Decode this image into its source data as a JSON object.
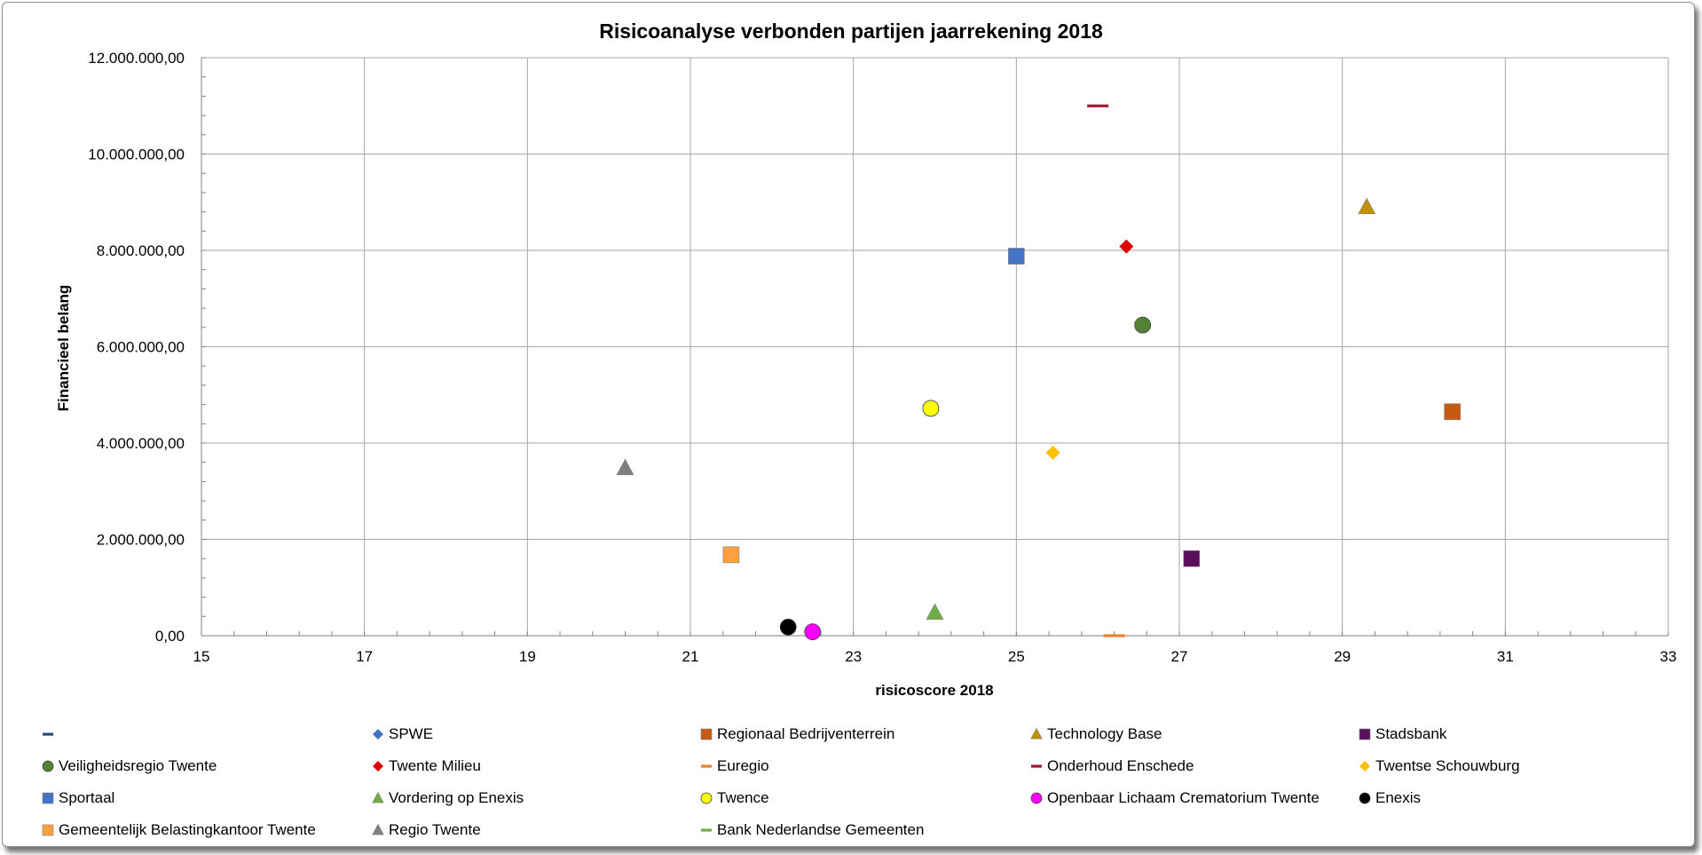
{
  "chart_data": {
    "type": "scatter",
    "title": "Risicoanalyse verbonden partijen jaarrekening 2018",
    "xlabel": "risicoscore 2018",
    "ylabel": "Financieel belang",
    "xlim": [
      15,
      33
    ],
    "ylim": [
      0,
      12000000
    ],
    "x_ticks": [
      15,
      17,
      19,
      21,
      23,
      25,
      27,
      29,
      31,
      33
    ],
    "x_tick_labels": [
      "15",
      "17",
      "19",
      "21",
      "23",
      "25",
      "27",
      "29",
      "31",
      "33"
    ],
    "y_ticks": [
      0,
      2000000,
      4000000,
      6000000,
      8000000,
      10000000,
      12000000
    ],
    "y_tick_labels": [
      "0,00",
      "2.000.000,00",
      "4.000.000,00",
      "6.000.000,00",
      "8.000.000,00",
      "10.000.000,00",
      "12.000.000,00"
    ],
    "grid": true,
    "legend_position": "bottom",
    "series": [
      {
        "name": "",
        "marker": "dash",
        "color": "#1f4e79",
        "points": []
      },
      {
        "name": "SPWE",
        "marker": "diamond",
        "color": "#4472c4",
        "points": []
      },
      {
        "name": "Regionaal Bedrijventerrein",
        "marker": "square",
        "color": "#c55a11",
        "points": [
          [
            30.35,
            4650000
          ]
        ]
      },
      {
        "name": "Technology Base",
        "marker": "triangle",
        "color": "#bf9000",
        "points": [
          [
            29.3,
            8900000
          ]
        ]
      },
      {
        "name": "Stadsbank",
        "marker": "square",
        "color": "#5b0f5b",
        "points": [
          [
            27.15,
            1600000
          ]
        ]
      },
      {
        "name": "Veiligheidsregio Twente",
        "marker": "circle",
        "color": "#548235",
        "points": [
          [
            26.55,
            6450000
          ]
        ]
      },
      {
        "name": "Twente Milieu",
        "marker": "diamond",
        "color": "#e00000",
        "points": [
          [
            26.35,
            8080000
          ]
        ]
      },
      {
        "name": "Euregio",
        "marker": "dash",
        "color": "#ed7d31",
        "points": [
          [
            26.2,
            0
          ]
        ]
      },
      {
        "name": "Onderhoud Enschede",
        "marker": "dash",
        "color": "#9b1b30",
        "points": [
          [
            26.0,
            11000000
          ]
        ]
      },
      {
        "name": "Twentse Schouwburg",
        "marker": "diamond",
        "color": "#ffc000",
        "points": [
          [
            25.45,
            3800000
          ]
        ]
      },
      {
        "name": "Sportaal",
        "marker": "square",
        "color": "#4472c4",
        "points": [
          [
            25.0,
            7880000
          ]
        ]
      },
      {
        "name": "Vordering op Enexis",
        "marker": "triangle",
        "color": "#70ad47",
        "points": [
          [
            24.0,
            480000
          ]
        ]
      },
      {
        "name": "Twence",
        "marker": "circle",
        "color": "#ffff00",
        "points": [
          [
            23.95,
            4720000
          ]
        ]
      },
      {
        "name": "Openbaar Lichaam Crematorium Twente",
        "marker": "circle",
        "color": "#ff00ff",
        "points": [
          [
            22.5,
            80000
          ]
        ]
      },
      {
        "name": "Enexis",
        "marker": "circle",
        "color": "#000000",
        "points": [
          [
            22.2,
            180000
          ]
        ]
      },
      {
        "name": "Gemeentelijk Belastingkantoor Twente",
        "marker": "square",
        "color": "#ffa040",
        "points": [
          [
            21.5,
            1680000
          ]
        ]
      },
      {
        "name": "Regio Twente",
        "marker": "triangle",
        "color": "#808080",
        "points": [
          [
            20.2,
            3480000
          ]
        ]
      },
      {
        "name": "Bank Nederlandse Gemeenten",
        "marker": "dash",
        "color": "#70ad47",
        "points": []
      }
    ]
  }
}
